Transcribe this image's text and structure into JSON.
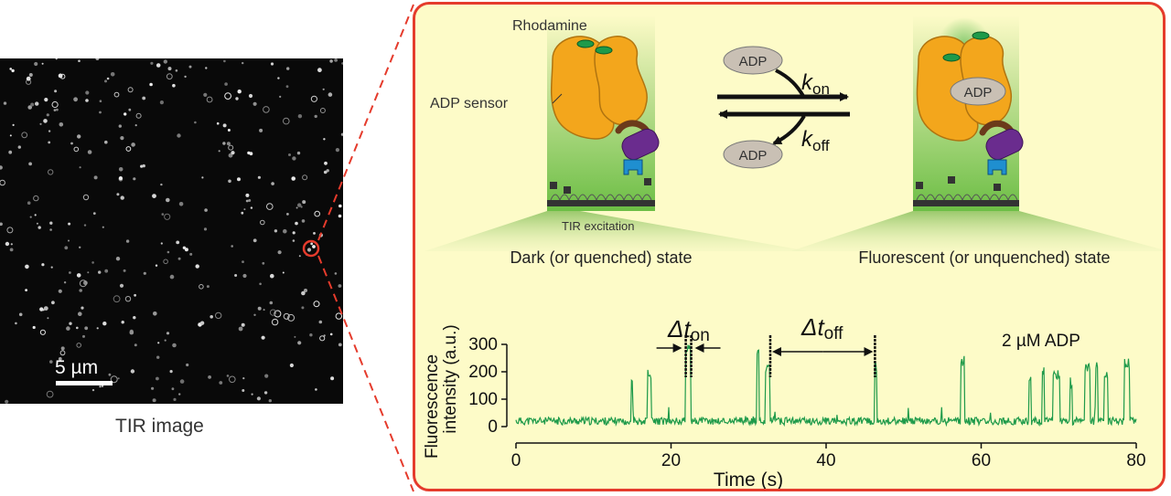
{
  "left": {
    "scale_bar_label": "5 µm",
    "caption": "TIR image"
  },
  "scheme": {
    "rhodamine_label": "Rhodamine",
    "sensor_label": "ADP sensor",
    "tir_label": "TIR  excitation",
    "dark_state_label": "Dark (or quenched) state",
    "fluorescent_state_label": "Fluorescent (or unquenched) state",
    "adp_label": "ADP",
    "k_on_main": "k",
    "k_on_sub": "on",
    "k_off_main": "k",
    "k_off_sub": "off"
  },
  "trace": {
    "ylabel_line1": "Fluorescence",
    "ylabel_line2": "intensity (a.u.)",
    "xlabel": "Time (s)",
    "annotation": "2 µM ADP",
    "dt_on_main": "Δt",
    "dt_on_sub": "on",
    "dt_off_main": "Δt",
    "dt_off_sub": "off"
  },
  "colors": {
    "frame": "#e53b2c",
    "panel_bg": "#fdfbc8",
    "trace": "#1e9a4a",
    "sensor": "#f3a61c",
    "green_bg": "#6cbe45"
  },
  "chart_data": {
    "type": "line",
    "xlabel": "Time (s)",
    "ylabel": "Fluorescence intensity (a.u.)",
    "xlim": [
      0,
      80
    ],
    "ylim": [
      0,
      300
    ],
    "x_ticks": [
      0,
      20,
      40,
      60,
      80
    ],
    "y_ticks": [
      0,
      100,
      200,
      300
    ],
    "baseline": 20,
    "events": [
      {
        "start": 14.8,
        "end": 15.0,
        "peak": 190
      },
      {
        "start": 16.9,
        "end": 17.4,
        "peak": 210
      },
      {
        "start": 21.9,
        "end": 22.6,
        "peak": 300
      },
      {
        "start": 31.1,
        "end": 31.4,
        "peak": 290
      },
      {
        "start": 32.2,
        "end": 32.8,
        "peak": 230
      },
      {
        "start": 46.3,
        "end": 46.6,
        "peak": 240
      },
      {
        "start": 57.4,
        "end": 57.9,
        "peak": 260
      },
      {
        "start": 66.2,
        "end": 66.5,
        "peak": 200
      },
      {
        "start": 67.9,
        "end": 68.2,
        "peak": 220
      },
      {
        "start": 69.3,
        "end": 70.2,
        "peak": 210
      },
      {
        "start": 71.5,
        "end": 71.8,
        "peak": 180
      },
      {
        "start": 73.4,
        "end": 74.1,
        "peak": 230
      },
      {
        "start": 74.8,
        "end": 75.1,
        "peak": 250
      },
      {
        "start": 75.8,
        "end": 76.3,
        "peak": 220
      },
      {
        "start": 78.4,
        "end": 79.1,
        "peak": 250
      }
    ],
    "dt_on_marks": [
      21.9,
      22.6
    ],
    "dt_off_marks": [
      32.8,
      46.3
    ]
  }
}
